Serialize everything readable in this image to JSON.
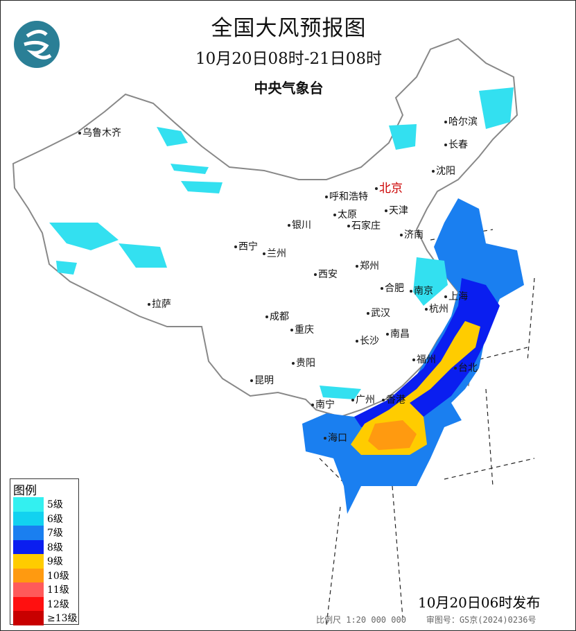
{
  "header": {
    "title": "全国大风预报图",
    "period": "10月20日08时-21日08时",
    "issuer": "中央气象台"
  },
  "logo": {
    "icon": "cma-logo",
    "color": "#2a7f96"
  },
  "cities": [
    {
      "name": "乌鲁木齐"
    },
    {
      "name": "哈尔滨"
    },
    {
      "name": "长春"
    },
    {
      "name": "沈阳"
    },
    {
      "name": "北京",
      "capital": true
    },
    {
      "name": "呼和浩特"
    },
    {
      "name": "天津"
    },
    {
      "name": "太原"
    },
    {
      "name": "石家庄"
    },
    {
      "name": "银川"
    },
    {
      "name": "济南"
    },
    {
      "name": "西宁"
    },
    {
      "name": "兰州"
    },
    {
      "name": "西安"
    },
    {
      "name": "郑州"
    },
    {
      "name": "合肥"
    },
    {
      "name": "南京"
    },
    {
      "name": "上海"
    },
    {
      "name": "拉萨"
    },
    {
      "name": "杭州"
    },
    {
      "name": "武汉"
    },
    {
      "name": "成都"
    },
    {
      "name": "南昌"
    },
    {
      "name": "重庆"
    },
    {
      "name": "长沙"
    },
    {
      "name": "福州"
    },
    {
      "name": "台北"
    },
    {
      "name": "贵阳"
    },
    {
      "name": "昆明"
    },
    {
      "name": "南宁"
    },
    {
      "name": "广州"
    },
    {
      "name": "香港"
    },
    {
      "name": "海口"
    }
  ],
  "legend": {
    "title": "图例",
    "items": [
      {
        "label": "5级",
        "color": "#33f0f0"
      },
      {
        "label": "6级",
        "color": "#12d2f0"
      },
      {
        "label": "7级",
        "color": "#1a7ff0"
      },
      {
        "label": "8级",
        "color": "#0a1ef0"
      },
      {
        "label": "9级",
        "color": "#ffcc00"
      },
      {
        "label": "10级",
        "color": "#ff9a10"
      },
      {
        "label": "11级",
        "color": "#ff5a5a"
      },
      {
        "label": "12级",
        "color": "#ff1010"
      },
      {
        "label": "≥13级",
        "color": "#c80000"
      }
    ]
  },
  "footer": {
    "issued": "10月20日06时发布",
    "scale": "比例尺 1:20 000 000",
    "approval": "审图号：GS京(2024)0236号"
  }
}
